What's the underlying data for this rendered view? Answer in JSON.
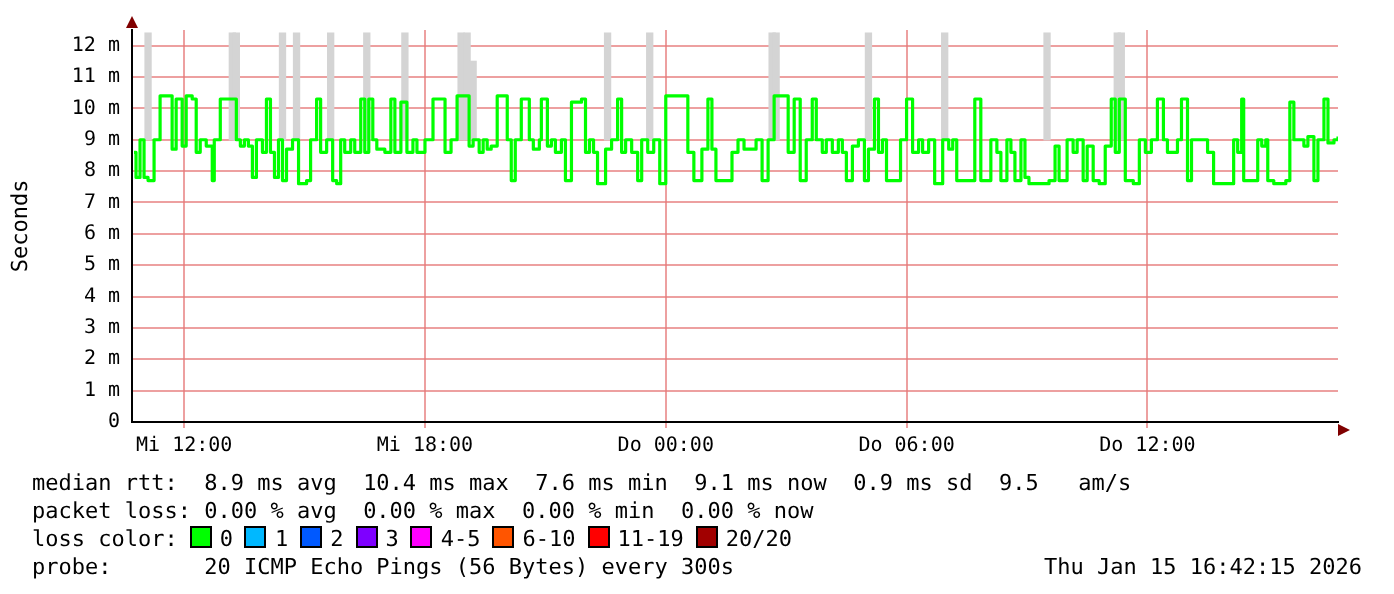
{
  "chart_data": {
    "type": "step",
    "ylabel": "Seconds",
    "legend_title": "loss color:",
    "legend": "bottom",
    "grid": true,
    "marker": "none",
    "xlim": [
      "2026-01-14T10:42",
      "2026-01-15T16:45"
    ],
    "ylim": [
      0,
      12.5
    ],
    "xticks": [
      {
        "value": "2026-01-14T12:00",
        "label": "Mi 12:00"
      },
      {
        "value": "2026-01-14T18:00",
        "label": "Mi 18:00"
      },
      {
        "value": "2026-01-15T00:00",
        "label": "Do 00:00"
      },
      {
        "value": "2026-01-15T06:00",
        "label": "Do 06:00"
      },
      {
        "value": "2026-01-15T12:00",
        "label": "Do 12:00"
      }
    ],
    "yticks": [
      {
        "value": 0,
        "label": "0"
      },
      {
        "value": 1,
        "label": "1 m"
      },
      {
        "value": 2,
        "label": "2 m"
      },
      {
        "value": 3,
        "label": "3 m"
      },
      {
        "value": 4,
        "label": "4 m"
      },
      {
        "value": 5,
        "label": "5 m"
      },
      {
        "value": 6,
        "label": "6 m"
      },
      {
        "value": 7,
        "label": "7 m"
      },
      {
        "value": 8,
        "label": "8 m"
      },
      {
        "value": 9,
        "label": "9 m"
      },
      {
        "value": 10,
        "label": "10 m"
      },
      {
        "value": 11,
        "label": "11 m"
      },
      {
        "value": 12,
        "label": "12 m"
      }
    ],
    "series": [
      {
        "type": "bar",
        "color": "#d4d4d4",
        "x": [
          "2026-01-14T11:06",
          "2026-01-14T13:12",
          "2026-01-14T13:18",
          "2026-01-14T14:27",
          "2026-01-14T14:48",
          "2026-01-14T15:39",
          "2026-01-14T16:33",
          "2026-01-14T17:30",
          "2026-01-14T18:54",
          "2026-01-14T19:03",
          "2026-01-14T19:12",
          "2026-01-14T22:33",
          "2026-01-14T23:36",
          "2026-01-15T02:39",
          "2026-01-15T02:45",
          "2026-01-15T05:03",
          "2026-01-15T06:57",
          "2026-01-15T09:30",
          "2026-01-15T11:15",
          "2026-01-15T11:21"
        ],
        "base": [
          9,
          9,
          9,
          9,
          9,
          9,
          9,
          9,
          9,
          9,
          9,
          9,
          9,
          9,
          9,
          9,
          9,
          9,
          9,
          9
        ],
        "values": [
          3.4,
          3.4,
          3.4,
          3.4,
          3.4,
          3.4,
          3.4,
          3.4,
          3.4,
          3.4,
          2.5,
          3.4,
          3.4,
          3.4,
          3.4,
          3.4,
          3.4,
          3.4,
          3.4,
          3.4
        ]
      },
      {
        "name": "0",
        "color": "#00ff00",
        "x": [
          "2026-01-14T10:45",
          "2026-01-14T10:48",
          "2026-01-14T10:54",
          "2026-01-14T11:00",
          "2026-01-14T11:06",
          "2026-01-14T11:15",
          "2026-01-14T11:24",
          "2026-01-14T11:36",
          "2026-01-14T11:42",
          "2026-01-14T11:48",
          "2026-01-14T11:57",
          "2026-01-14T12:03",
          "2026-01-14T12:12",
          "2026-01-14T12:18",
          "2026-01-14T12:24",
          "2026-01-14T12:33",
          "2026-01-14T12:42",
          "2026-01-14T12:45",
          "2026-01-14T12:54",
          "2026-01-14T13:12",
          "2026-01-14T13:18",
          "2026-01-14T13:24",
          "2026-01-14T13:30",
          "2026-01-14T13:36",
          "2026-01-14T13:42",
          "2026-01-14T13:48",
          "2026-01-14T13:57",
          "2026-01-14T14:03",
          "2026-01-14T14:09",
          "2026-01-14T14:15",
          "2026-01-14T14:21",
          "2026-01-14T14:27",
          "2026-01-14T14:33",
          "2026-01-14T14:42",
          "2026-01-14T14:51",
          "2026-01-14T15:03",
          "2026-01-14T15:09",
          "2026-01-14T15:18",
          "2026-01-14T15:24",
          "2026-01-14T15:33",
          "2026-01-14T15:42",
          "2026-01-14T15:48",
          "2026-01-14T15:54",
          "2026-01-14T16:00",
          "2026-01-14T16:09",
          "2026-01-14T16:15",
          "2026-01-14T16:24",
          "2026-01-14T16:30",
          "2026-01-14T16:36",
          "2026-01-14T16:42",
          "2026-01-14T16:48",
          "2026-01-14T17:00",
          "2026-01-14T17:09",
          "2026-01-14T17:15",
          "2026-01-14T17:24",
          "2026-01-14T17:33",
          "2026-01-14T17:42",
          "2026-01-14T17:48",
          "2026-01-14T18:00",
          "2026-01-14T18:12",
          "2026-01-14T18:21",
          "2026-01-14T18:30",
          "2026-01-14T18:39",
          "2026-01-14T18:48",
          "2026-01-14T19:00",
          "2026-01-14T19:06",
          "2026-01-14T19:12",
          "2026-01-14T19:21",
          "2026-01-14T19:27",
          "2026-01-14T19:33",
          "2026-01-14T19:39",
          "2026-01-14T19:48",
          "2026-01-14T19:57",
          "2026-01-14T20:03",
          "2026-01-14T20:09",
          "2026-01-14T20:15",
          "2026-01-14T20:24",
          "2026-01-14T20:30",
          "2026-01-14T20:36",
          "2026-01-14T20:42",
          "2026-01-14T20:51",
          "2026-01-14T20:54",
          "2026-01-14T21:03",
          "2026-01-14T21:09",
          "2026-01-14T21:15",
          "2026-01-14T21:24",
          "2026-01-14T21:30",
          "2026-01-14T21:39",
          "2026-01-14T21:54",
          "2026-01-14T22:00",
          "2026-01-14T22:06",
          "2026-01-14T22:12",
          "2026-01-14T22:18",
          "2026-01-14T22:30",
          "2026-01-14T22:39",
          "2026-01-14T22:48",
          "2026-01-14T22:54",
          "2026-01-14T23:00",
          "2026-01-14T23:09",
          "2026-01-14T23:18",
          "2026-01-14T23:24",
          "2026-01-14T23:33",
          "2026-01-14T23:42",
          "2026-01-14T23:51",
          "2026-01-15T00:00",
          "2026-01-15T00:24",
          "2026-01-15T00:33",
          "2026-01-15T00:42",
          "2026-01-15T00:54",
          "2026-01-15T01:03",
          "2026-01-15T01:09",
          "2026-01-15T01:15",
          "2026-01-15T01:30",
          "2026-01-15T01:39",
          "2026-01-15T01:48",
          "2026-01-15T01:57",
          "2026-01-15T02:06",
          "2026-01-15T02:15",
          "2026-01-15T02:24",
          "2026-01-15T02:33",
          "2026-01-15T02:42",
          "2026-01-15T02:54",
          "2026-01-15T03:03",
          "2026-01-15T03:12",
          "2026-01-15T03:21",
          "2026-01-15T03:30",
          "2026-01-15T03:39",
          "2026-01-15T03:45",
          "2026-01-15T03:54",
          "2026-01-15T04:00",
          "2026-01-15T04:09",
          "2026-01-15T04:18",
          "2026-01-15T04:24",
          "2026-01-15T04:30",
          "2026-01-15T04:39",
          "2026-01-15T04:48",
          "2026-01-15T04:57",
          "2026-01-15T05:03",
          "2026-01-15T05:12",
          "2026-01-15T05:18",
          "2026-01-15T05:24",
          "2026-01-15T05:30",
          "2026-01-15T05:42",
          "2026-01-15T05:51",
          "2026-01-15T06:00",
          "2026-01-15T06:09",
          "2026-01-15T06:18",
          "2026-01-15T06:24",
          "2026-01-15T06:33",
          "2026-01-15T06:42",
          "2026-01-15T06:54",
          "2026-01-15T07:03",
          "2026-01-15T07:09",
          "2026-01-15T07:15",
          "2026-01-15T07:27",
          "2026-01-15T07:42",
          "2026-01-15T07:51",
          "2026-01-15T08:00",
          "2026-01-15T08:06",
          "2026-01-15T08:15",
          "2026-01-15T08:21",
          "2026-01-15T08:30",
          "2026-01-15T08:36",
          "2026-01-15T08:42",
          "2026-01-15T08:51",
          "2026-01-15T08:57",
          "2026-01-15T09:03",
          "2026-01-15T09:24",
          "2026-01-15T09:33",
          "2026-01-15T09:42",
          "2026-01-15T09:48",
          "2026-01-15T10:00",
          "2026-01-15T10:09",
          "2026-01-15T10:15",
          "2026-01-15T10:24",
          "2026-01-15T10:30",
          "2026-01-15T10:39",
          "2026-01-15T10:48",
          "2026-01-15T10:57",
          "2026-01-15T11:06",
          "2026-01-15T11:12",
          "2026-01-15T11:18",
          "2026-01-15T11:27",
          "2026-01-15T11:39",
          "2026-01-15T11:48",
          "2026-01-15T11:57",
          "2026-01-15T12:06",
          "2026-01-15T12:15",
          "2026-01-15T12:24",
          "2026-01-15T12:30",
          "2026-01-15T12:39",
          "2026-01-15T12:45",
          "2026-01-15T12:51",
          "2026-01-15T13:00",
          "2026-01-15T13:06",
          "2026-01-15T13:21",
          "2026-01-15T13:30",
          "2026-01-15T13:39",
          "2026-01-15T14:03",
          "2026-01-15T14:09",
          "2026-01-15T14:15",
          "2026-01-15T14:21",
          "2026-01-15T14:24",
          "2026-01-15T14:36",
          "2026-01-15T14:45",
          "2026-01-15T14:51",
          "2026-01-15T14:57",
          "2026-01-15T15:00",
          "2026-01-15T15:09",
          "2026-01-15T15:27",
          "2026-01-15T15:33",
          "2026-01-15T15:39",
          "2026-01-15T15:54",
          "2026-01-15T16:00",
          "2026-01-15T16:09",
          "2026-01-15T16:15",
          "2026-01-15T16:24",
          "2026-01-15T16:30",
          "2026-01-15T16:39",
          "2026-01-15T16:45"
        ],
        "values": [
          8.6,
          7.8,
          9.0,
          7.8,
          7.7,
          9.0,
          10.4,
          10.4,
          8.7,
          10.3,
          8.8,
          10.4,
          10.3,
          8.6,
          9.0,
          8.8,
          7.7,
          9.0,
          10.3,
          10.3,
          9.0,
          8.8,
          9.0,
          8.8,
          7.8,
          9.0,
          8.6,
          10.3,
          8.6,
          7.8,
          9.0,
          7.7,
          8.7,
          9.0,
          7.6,
          7.7,
          9.0,
          10.3,
          8.6,
          9.0,
          7.7,
          7.6,
          9.0,
          8.6,
          9.0,
          8.6,
          10.3,
          8.6,
          10.3,
          9.0,
          8.7,
          8.6,
          10.3,
          8.6,
          10.2,
          8.6,
          9.0,
          8.6,
          9.0,
          10.3,
          10.3,
          8.6,
          9.0,
          10.4,
          10.4,
          8.8,
          9.0,
          8.6,
          9.0,
          8.7,
          8.8,
          10.4,
          10.4,
          9.0,
          7.7,
          9.0,
          10.3,
          10.3,
          9.0,
          8.7,
          9.0,
          10.3,
          8.8,
          9.0,
          8.6,
          9.0,
          7.7,
          10.2,
          10.3,
          8.6,
          9.0,
          8.6,
          7.6,
          8.7,
          9.0,
          10.3,
          8.6,
          9.0,
          8.6,
          7.7,
          9.0,
          8.6,
          9.0,
          7.6,
          10.4,
          10.4,
          8.6,
          7.7,
          8.7,
          10.3,
          8.7,
          7.7,
          7.7,
          8.6,
          9.0,
          8.7,
          8.7,
          9.0,
          7.7,
          9.0,
          10.4,
          10.4,
          8.6,
          10.3,
          7.7,
          9.0,
          10.3,
          9.0,
          8.6,
          9.0,
          8.6,
          9.0,
          8.6,
          7.7,
          8.8,
          9.0,
          7.7,
          8.7,
          10.3,
          8.6,
          9.0,
          7.7,
          7.7,
          9.0,
          10.3,
          8.6,
          9.0,
          8.6,
          9.0,
          7.6,
          9.0,
          8.7,
          9.0,
          7.7,
          7.7,
          10.3,
          7.7,
          7.7,
          9.0,
          8.6,
          7.7,
          9.0,
          8.6,
          7.7,
          9.0,
          7.8,
          7.6,
          7.6,
          7.7,
          8.8,
          7.7,
          9.0,
          8.6,
          9.0,
          7.7,
          8.8,
          7.7,
          7.6,
          8.8,
          10.3,
          8.6,
          10.3,
          7.7,
          7.6,
          9.0,
          8.6,
          9.0,
          10.3,
          9.0,
          8.6,
          8.6,
          9.0,
          10.3,
          7.7,
          9.0,
          9.0,
          8.6,
          7.6,
          7.6,
          9.0,
          8.6,
          10.3,
          7.7,
          7.7,
          9.0,
          8.8,
          9.0,
          7.7,
          7.6,
          7.7,
          10.2,
          9.0,
          8.8,
          9.1,
          7.7,
          9.0,
          10.3,
          8.9,
          9.0,
          9.1
        ]
      },
      {
        "name": "1",
        "color": "#00b8ff"
      },
      {
        "name": "2",
        "color": "#0059ff"
      },
      {
        "name": "3",
        "color": "#7e00ff"
      },
      {
        "name": "4-5",
        "color": "#ff00ff"
      },
      {
        "name": "6-10",
        "color": "#ff5500"
      },
      {
        "name": "11-19",
        "color": "#ff0000"
      },
      {
        "name": "20/20",
        "color": "#a10000"
      }
    ],
    "annotations": [
      "median rtt:  8.9 ms avg  10.4 ms max  7.6 ms min  9.1 ms now  0.9 ms sd  9.5   am/s",
      "packet loss: 0.00 % avg  0.00 % max  0.00 % min  0.00 % now",
      "probe:       20 ICMP Echo Pings (56 Bytes) every 300s",
      "Thu Jan 15 16:42:15 2026"
    ]
  }
}
